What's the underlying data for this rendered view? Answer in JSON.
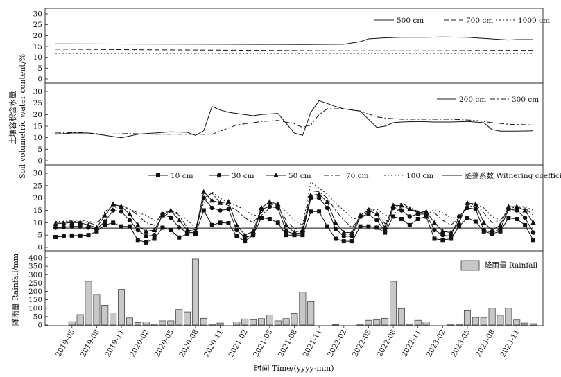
{
  "figure": {
    "soil_ylabel_cn": "土壤容积含水量",
    "soil_ylabel_en": "Soil volumetric water content/%",
    "rain_ylabel": "降雨量 Rainfall/mm",
    "xlabel": "时间 Time/(yyyy-mm)"
  },
  "chart_data": [
    {
      "type": "line",
      "panel": "deep",
      "x_unit": "month index (0 = 2019-03)",
      "ylim": [
        0,
        30
      ],
      "yticks": [
        0,
        5,
        10,
        15,
        20,
        25,
        30
      ],
      "legend_position": "top-right",
      "series": [
        {
          "name": "500 cm",
          "style": "solid",
          "x": [
            0,
            10,
            20,
            30,
            35,
            37,
            38,
            40,
            42,
            45,
            47,
            50,
            55,
            56,
            58
          ],
          "values": [
            16.2,
            16.1,
            16,
            15.9,
            16,
            17.2,
            18.5,
            19,
            19.2,
            19.2,
            19.4,
            19.2,
            18,
            18.2,
            18.2
          ]
        },
        {
          "name": "700 cm",
          "style": "dashed",
          "x": [
            0,
            10,
            20,
            35,
            45,
            55,
            58
          ],
          "values": [
            13.8,
            13.5,
            13.3,
            13,
            13,
            13.2,
            13.2
          ]
        },
        {
          "name": "1000 cm",
          "style": "dotted",
          "x": [
            0,
            10,
            20,
            35,
            45,
            58
          ],
          "values": [
            11.8,
            11.8,
            11.8,
            11.8,
            11.8,
            11.8
          ]
        }
      ]
    },
    {
      "type": "line",
      "panel": "middle",
      "x_unit": "month index (0 = 2019-03)",
      "ylim": [
        0,
        30
      ],
      "yticks": [
        0,
        5,
        10,
        15,
        20,
        25,
        30
      ],
      "legend_position": "top-right",
      "series": [
        {
          "name": "200 cm",
          "style": "solid",
          "x": [
            0,
            2,
            4,
            6,
            8,
            10,
            11,
            12,
            14,
            16,
            17,
            18,
            19,
            20,
            21,
            22,
            24,
            25,
            27,
            29,
            30,
            31,
            32,
            33,
            34,
            35,
            37,
            39,
            40,
            41,
            42,
            44,
            46,
            48,
            50,
            52,
            53,
            54,
            55,
            56,
            58
          ],
          "values": [
            11.5,
            12,
            12,
            11,
            10,
            11.5,
            11.8,
            12,
            12.5,
            12.3,
            11,
            13,
            23.5,
            22,
            21,
            20.5,
            19.5,
            20,
            20.5,
            12,
            11,
            21,
            26,
            24.8,
            23.5,
            22.5,
            21.5,
            14.5,
            15,
            16.5,
            16.8,
            17,
            16.8,
            16.8,
            17,
            16.5,
            13.5,
            12.8,
            12.8,
            12.8,
            13
          ]
        },
        {
          "name": "300 cm",
          "style": "dashdot",
          "x": [
            0,
            3,
            6,
            9,
            12,
            15,
            17,
            19,
            20,
            22,
            25,
            27,
            29,
            30,
            31,
            32,
            33,
            35,
            37,
            39,
            40,
            42,
            45,
            48,
            51,
            53,
            55,
            58
          ],
          "values": [
            12,
            12.2,
            11.5,
            11.8,
            11.5,
            11.5,
            11.5,
            11.5,
            12.8,
            15.5,
            17,
            17.5,
            16,
            14.5,
            15.5,
            20,
            22.5,
            22.5,
            21.5,
            19,
            18.5,
            18,
            18,
            18,
            17.5,
            16.5,
            15.8,
            15.5
          ]
        }
      ]
    },
    {
      "type": "line",
      "panel": "shallow",
      "x_unit": "month index (0 = 2019-03)",
      "ylim": [
        0,
        30
      ],
      "yticks": [
        0,
        5,
        10,
        15,
        20,
        25,
        30
      ],
      "legend_position": "top",
      "x": [
        0,
        1,
        2,
        3,
        4,
        5,
        6,
        7,
        8,
        9,
        10,
        11,
        12,
        13,
        14,
        15,
        16,
        17,
        18,
        19,
        20,
        21,
        22,
        23,
        24,
        25,
        26,
        27,
        28,
        29,
        30,
        31,
        32,
        33,
        34,
        35,
        36,
        37,
        38,
        39,
        40,
        41,
        42,
        43,
        44,
        45,
        46,
        47,
        48,
        49,
        50,
        51,
        52,
        53,
        54,
        55,
        56,
        57,
        58
      ],
      "withering_coefficient": 7.8,
      "series": [
        {
          "name": "10 cm",
          "marker": "square",
          "values": [
            4.2,
            4.5,
            4.8,
            4.8,
            5,
            6.5,
            9,
            10,
            8.5,
            8.5,
            3,
            2,
            3.5,
            8,
            7,
            4,
            5.5,
            5.5,
            15,
            9,
            10,
            9.8,
            4.5,
            2.5,
            5,
            12,
            11.5,
            10,
            5,
            5,
            5,
            14.5,
            14.5,
            8.5,
            3.5,
            2.5,
            2.5,
            8.5,
            8.5,
            8,
            6,
            12.5,
            11.5,
            9,
            11.5,
            12.5,
            3.5,
            3,
            3.5,
            8.5,
            12,
            10.5,
            6.5,
            5.5,
            6.5,
            12,
            11.5,
            9,
            3
          ]
        },
        {
          "name": "30 cm",
          "marker": "circle",
          "values": [
            8,
            8.2,
            8.5,
            8.5,
            8,
            7.5,
            10.5,
            15,
            14.5,
            11,
            7,
            4.5,
            5,
            13.5,
            12,
            8,
            6,
            6,
            20,
            16,
            15,
            15.5,
            7,
            4,
            5,
            15.5,
            16.5,
            16,
            6.5,
            5.5,
            6,
            20,
            20,
            16,
            7.5,
            4.5,
            4.5,
            12.5,
            13.5,
            11,
            6.5,
            16,
            15,
            12.5,
            13.5,
            13.5,
            7,
            5,
            4.5,
            12.5,
            16,
            15.5,
            7,
            6,
            7.5,
            15.5,
            15,
            12,
            6
          ]
        },
        {
          "name": "50 cm",
          "marker": "triangle",
          "values": [
            9.5,
            9.8,
            10,
            10,
            9,
            8,
            13,
            17.5,
            16.5,
            13.5,
            9,
            6.5,
            7,
            13,
            15,
            11,
            7,
            6.5,
            22.5,
            19,
            18,
            18.5,
            9,
            5,
            6.5,
            16,
            18.5,
            17.5,
            9,
            6,
            7,
            21,
            21.5,
            18.5,
            10,
            6,
            6,
            13,
            15,
            13.5,
            8,
            17,
            17,
            15.5,
            14,
            14.5,
            10,
            6.5,
            6,
            10,
            18,
            17.5,
            10,
            7,
            9,
            16.5,
            16.5,
            15,
            10
          ]
        },
        {
          "name": "70 cm",
          "style": "dashdot",
          "values": [
            10,
            10.2,
            10.5,
            10.5,
            10,
            9,
            14.5,
            17,
            17,
            15.5,
            13,
            10,
            9,
            14,
            15,
            13,
            8,
            7,
            20,
            22,
            18,
            17,
            15,
            12,
            10,
            14,
            17.5,
            17,
            11,
            7.5,
            8,
            23,
            22.5,
            20,
            15,
            11,
            8,
            12,
            16,
            14.5,
            9.5,
            15.5,
            18,
            16,
            14,
            14.5,
            14,
            11,
            9,
            12,
            17,
            17.5,
            14,
            10,
            11,
            15.5,
            16.5,
            16,
            13
          ]
        },
        {
          "name": "100 cm",
          "style": "dotted",
          "values": [
            10.5,
            10.5,
            11,
            11,
            10.5,
            10,
            13,
            16,
            16.5,
            15.5,
            14,
            13,
            11,
            12,
            14.5,
            14,
            11,
            8,
            18,
            22.5,
            20,
            18,
            17,
            15,
            13,
            13,
            16,
            17,
            14.5,
            11,
            9,
            26.5,
            24,
            21.5,
            18,
            15,
            12,
            11,
            15,
            15.5,
            13,
            13,
            16.5,
            16.5,
            14.5,
            14.5,
            15,
            14,
            12,
            12,
            16,
            17.5,
            16,
            12.5,
            11,
            14,
            16.5,
            16.5,
            15
          ]
        }
      ]
    },
    {
      "type": "bar",
      "panel": "rainfall",
      "x_unit": "month index (0 = 2019-03)",
      "ylim": [
        0,
        400
      ],
      "yticks": [
        0,
        50,
        100,
        150,
        200,
        250,
        300,
        350,
        400
      ],
      "legend_position": "top-right",
      "series": [
        {
          "name": "降雨量 Rainfall"
        }
      ],
      "x": [
        0,
        1,
        2,
        3,
        4,
        5,
        6,
        7,
        8,
        9,
        10,
        11,
        12,
        13,
        14,
        15,
        16,
        17,
        18,
        19,
        20,
        21,
        22,
        23,
        24,
        25,
        26,
        27,
        28,
        29,
        30,
        31,
        32,
        33,
        34,
        35,
        36,
        37,
        38,
        39,
        40,
        41,
        42,
        43,
        44,
        45,
        46,
        47,
        48,
        49,
        50,
        51,
        52,
        53,
        54,
        55,
        56,
        57,
        58
      ],
      "values": [
        0,
        0,
        20,
        62,
        260,
        182,
        118,
        72,
        212,
        42,
        15,
        18,
        5,
        25,
        25,
        92,
        78,
        392,
        40,
        5,
        12,
        0,
        18,
        36,
        32,
        38,
        60,
        25,
        38,
        68,
        195,
        138,
        0,
        0,
        2,
        0,
        0,
        5,
        28,
        32,
        40,
        260,
        98,
        5,
        28,
        18,
        0,
        0,
        5,
        5,
        85,
        45,
        45,
        100,
        58,
        100,
        30,
        12,
        8
      ]
    }
  ],
  "x_axis": {
    "ticks": [
      {
        "x": 2,
        "label": "2019-05"
      },
      {
        "x": 5,
        "label": "2019-08"
      },
      {
        "x": 8,
        "label": "2019-11"
      },
      {
        "x": 11,
        "label": "2020-02"
      },
      {
        "x": 14,
        "label": "2020-05"
      },
      {
        "x": 17,
        "label": "2020-08"
      },
      {
        "x": 20,
        "label": "2020-11"
      },
      {
        "x": 23,
        "label": "2021-02"
      },
      {
        "x": 26,
        "label": "2021-05"
      },
      {
        "x": 29,
        "label": "2021-08"
      },
      {
        "x": 32,
        "label": "2021-11"
      },
      {
        "x": 35,
        "label": "2022-02"
      },
      {
        "x": 38,
        "label": "2022-05"
      },
      {
        "x": 41,
        "label": "2022-08"
      },
      {
        "x": 44,
        "label": "2022-11"
      },
      {
        "x": 47,
        "label": "2023-02"
      },
      {
        "x": 50,
        "label": "2023-05"
      },
      {
        "x": 53,
        "label": "2023-08"
      },
      {
        "x": 56,
        "label": "2023-11"
      }
    ]
  },
  "withering_label": "萎蔫系数 Withering coefficient"
}
